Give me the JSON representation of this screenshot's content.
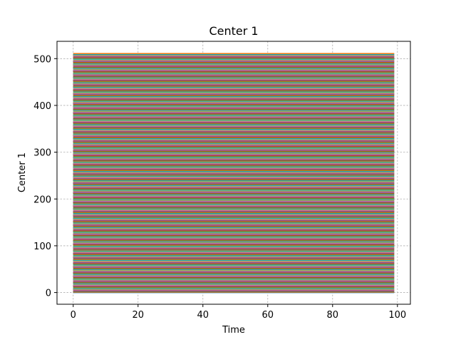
{
  "chart_data": {
    "type": "line",
    "title": "Center 1",
    "xlabel": "Time",
    "ylabel": "Center 1",
    "xlim": [
      -5,
      104
    ],
    "ylim": [
      -25,
      537
    ],
    "xticks": [
      0,
      20,
      40,
      60,
      80,
      100
    ],
    "yticks": [
      0,
      100,
      200,
      300,
      400,
      500
    ],
    "grid": true,
    "series_count": 512,
    "series_x": [
      0,
      99
    ],
    "series_y_start": 0,
    "series_y_step": 1,
    "palette": [
      "#1f77b4",
      "#ff7f0e",
      "#2ca02c",
      "#d62728",
      "#9467bd",
      "#8c564b",
      "#e377c2",
      "#7f7f7f",
      "#bcbd22",
      "#17becf"
    ]
  }
}
